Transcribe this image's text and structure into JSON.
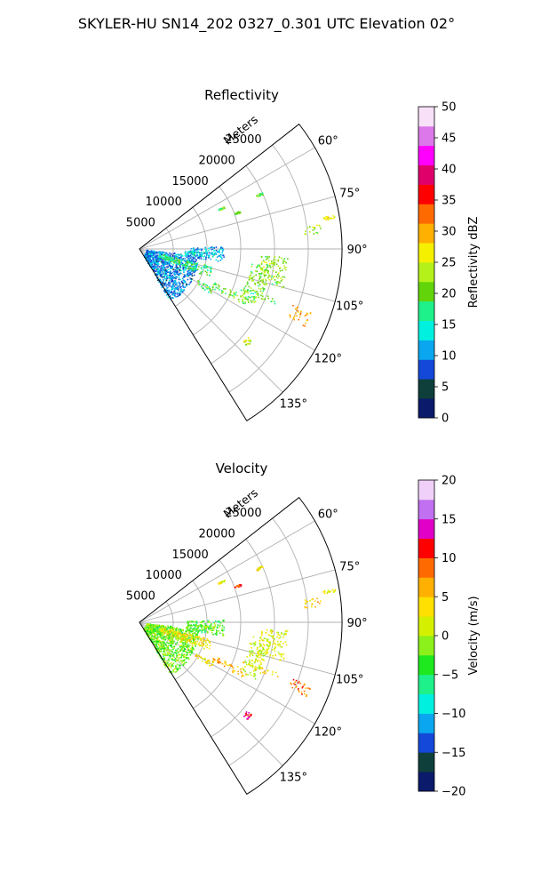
{
  "figure": {
    "title": "SKYLER-HU  SN14_202  0327_0.301 UTC Elevation 02°"
  },
  "chart_data": [
    {
      "type": "heatmap",
      "projection": "polar-sector",
      "title": "Reflectivity",
      "range_label": "Meters",
      "range_ticks": [
        "5000",
        "10000",
        "15000",
        "20000",
        "25000"
      ],
      "range_tick_values": [
        5000,
        10000,
        15000,
        20000,
        25000
      ],
      "range_max": 30000,
      "azimuth_ticks": [
        "60°",
        "75°",
        "90°",
        "105°",
        "120°",
        "135°"
      ],
      "azimuth_tick_values": [
        60,
        75,
        90,
        105,
        120,
        135
      ],
      "azimuth_range_deg": [
        52,
        148
      ],
      "grid": true,
      "colorbar": {
        "label": "Reflectivity dBZ",
        "min": 0,
        "max": 50,
        "ticks": [
          "0",
          "5",
          "10",
          "15",
          "20",
          "25",
          "30",
          "35",
          "40",
          "45",
          "50"
        ],
        "tick_values": [
          0,
          5,
          10,
          15,
          20,
          25,
          30,
          35,
          40,
          45,
          50
        ],
        "colors": [
          "#0b1a6b",
          "#0f3f3a",
          "#1448d8",
          "#0aa6f0",
          "#00f0e0",
          "#1ef08a",
          "#62d40a",
          "#b4f01a",
          "#f4f000",
          "#ffb000",
          "#ff6a00",
          "#ff0000",
          "#e0006a",
          "#ff00ff",
          "#dc78ea",
          "#f8e0f8"
        ]
      },
      "echo_features": [
        {
          "az": [
            96,
            150
          ],
          "r": [
            1000,
            9000
          ],
          "value": 10
        },
        {
          "az": [
            88,
            99
          ],
          "r": [
            7000,
            12500
          ],
          "value": 11
        },
        {
          "az": [
            92,
            96
          ],
          "r": [
            6500,
            11500
          ],
          "value": 14
        },
        {
          "az": [
            103,
            112
          ],
          "r": [
            3000,
            11000
          ],
          "value": 18
        },
        {
          "az": [
            114,
            118
          ],
          "r": [
            12000,
            17500
          ],
          "value": 20
        },
        {
          "az": [
            110,
            112
          ],
          "r": [
            16000,
            22000
          ],
          "value": 19
        },
        {
          "az": [
            93,
            105
          ],
          "r": [
            18000,
            22000
          ],
          "value": 22
        },
        {
          "az": [
            97,
            116
          ],
          "r": [
            16500,
            19500
          ],
          "value": 21
        },
        {
          "az": [
            110,
            115
          ],
          "r": [
            24000,
            27000
          ],
          "value": 30
        },
        {
          "az": [
            82,
            85
          ],
          "r": [
            24500,
            27000
          ],
          "value": 22
        },
        {
          "az": [
            80,
            81
          ],
          "r": [
            27500,
            29500
          ],
          "value": 26
        },
        {
          "az": [
            65,
            66
          ],
          "r": [
            19000,
            20000
          ],
          "value": 20
        },
        {
          "az": [
            69,
            70
          ],
          "r": [
            15000,
            16000
          ],
          "value": 21
        },
        {
          "az": [
            63,
            64
          ],
          "r": [
            13000,
            14000
          ],
          "value": 20
        },
        {
          "az": [
            129,
            132
          ],
          "r": [
            20500,
            21500
          ],
          "value": 25
        },
        {
          "az": [
            118,
            122
          ],
          "r": [
            9500,
            12500
          ],
          "value": 19
        }
      ]
    },
    {
      "type": "heatmap",
      "projection": "polar-sector",
      "title": "Velocity",
      "range_label": "Meters",
      "range_ticks": [
        "5000",
        "10000",
        "15000",
        "20000",
        "25000"
      ],
      "range_tick_values": [
        5000,
        10000,
        15000,
        20000,
        25000
      ],
      "range_max": 30000,
      "azimuth_ticks": [
        "60°",
        "75°",
        "90°",
        "105°",
        "120°",
        "135°"
      ],
      "azimuth_tick_values": [
        60,
        75,
        90,
        105,
        120,
        135
      ],
      "azimuth_range_deg": [
        52,
        148
      ],
      "grid": true,
      "colorbar": {
        "label": "Velocity (m/s)",
        "min": -20,
        "max": 20,
        "ticks": [
          "−20",
          "−15",
          "−10",
          "−5",
          "0",
          "5",
          "10",
          "15",
          "20"
        ],
        "tick_values": [
          -20,
          -15,
          -10,
          -5,
          0,
          5,
          10,
          15,
          20
        ],
        "colors": [
          "#0b1a6b",
          "#0f3f3a",
          "#1448d8",
          "#0aa6f0",
          "#00f0e0",
          "#1ef08a",
          "#1ee81e",
          "#8cf01a",
          "#d4f000",
          "#ffe000",
          "#ffb000",
          "#ff6a00",
          "#ff0000",
          "#e000c8",
          "#c070f0",
          "#f0d0f8"
        ]
      },
      "echo_features": [
        {
          "az": [
            96,
            150
          ],
          "r": [
            1000,
            9000
          ],
          "value": -2
        },
        {
          "az": [
            88,
            99
          ],
          "r": [
            7000,
            12500
          ],
          "value": -3
        },
        {
          "az": [
            92,
            96
          ],
          "r": [
            6500,
            11500
          ],
          "value": -2
        },
        {
          "az": [
            103,
            112
          ],
          "r": [
            3000,
            11000
          ],
          "value": 3
        },
        {
          "az": [
            114,
            118
          ],
          "r": [
            12000,
            17500
          ],
          "value": 6
        },
        {
          "az": [
            110,
            112
          ],
          "r": [
            16000,
            22000
          ],
          "value": 4
        },
        {
          "az": [
            93,
            105
          ],
          "r": [
            18000,
            22000
          ],
          "value": 2
        },
        {
          "az": [
            97,
            116
          ],
          "r": [
            16500,
            19500
          ],
          "value": 1
        },
        {
          "az": [
            110,
            115
          ],
          "r": [
            24000,
            27000
          ],
          "value": 8
        },
        {
          "az": [
            82,
            85
          ],
          "r": [
            24500,
            27000
          ],
          "value": 5
        },
        {
          "az": [
            80,
            81
          ],
          "r": [
            27500,
            29500
          ],
          "value": 2
        },
        {
          "az": [
            65,
            66
          ],
          "r": [
            19000,
            20000
          ],
          "value": 3
        },
        {
          "az": [
            69,
            70
          ],
          "r": [
            15000,
            16000
          ],
          "value": 10
        },
        {
          "az": [
            63,
            64
          ],
          "r": [
            13000,
            14000
          ],
          "value": 2
        },
        {
          "az": [
            129,
            132
          ],
          "r": [
            20500,
            21500
          ],
          "value": 12
        },
        {
          "az": [
            118,
            122
          ],
          "r": [
            9500,
            12500
          ],
          "value": 4
        }
      ]
    }
  ]
}
